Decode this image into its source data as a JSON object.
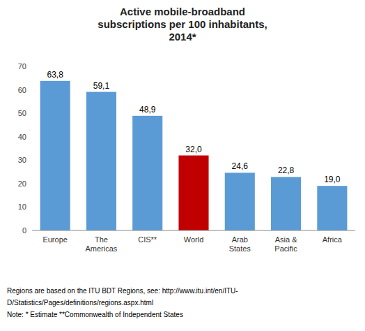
{
  "chart_data": {
    "type": "bar",
    "title": "Active mobile-broadband\nsubscriptions per 100 inhabitants,\n2014*",
    "categories": [
      "Europe",
      "The\nAmericas",
      "CIS**",
      "World",
      "Arab\nStates",
      "Asia &\nPacific",
      "Africa"
    ],
    "values": [
      63.8,
      59.1,
      48.9,
      32.0,
      24.6,
      22.8,
      19.0
    ],
    "value_labels": [
      "63,8",
      "59,1",
      "48,9",
      "32,0",
      "24,6",
      "22,8",
      "19,0"
    ],
    "colors": [
      "#5B9BD5",
      "#5B9BD5",
      "#5B9BD5",
      "#C00000",
      "#5B9BD5",
      "#5B9BD5",
      "#5B9BD5"
    ],
    "ylim": [
      0,
      70
    ],
    "yticks": [
      0,
      10,
      20,
      30,
      40,
      50,
      60,
      70
    ],
    "grid": false,
    "data_labels": true,
    "annotations": [
      "Regions are based on the ITU BDT Regions, see: http://www.itu.int/en/ITU-",
      "D/Statistics/Pages/definitions/regions.aspx.html",
      "Note:  * Estimate  **Commonwealth of Independent States"
    ]
  }
}
